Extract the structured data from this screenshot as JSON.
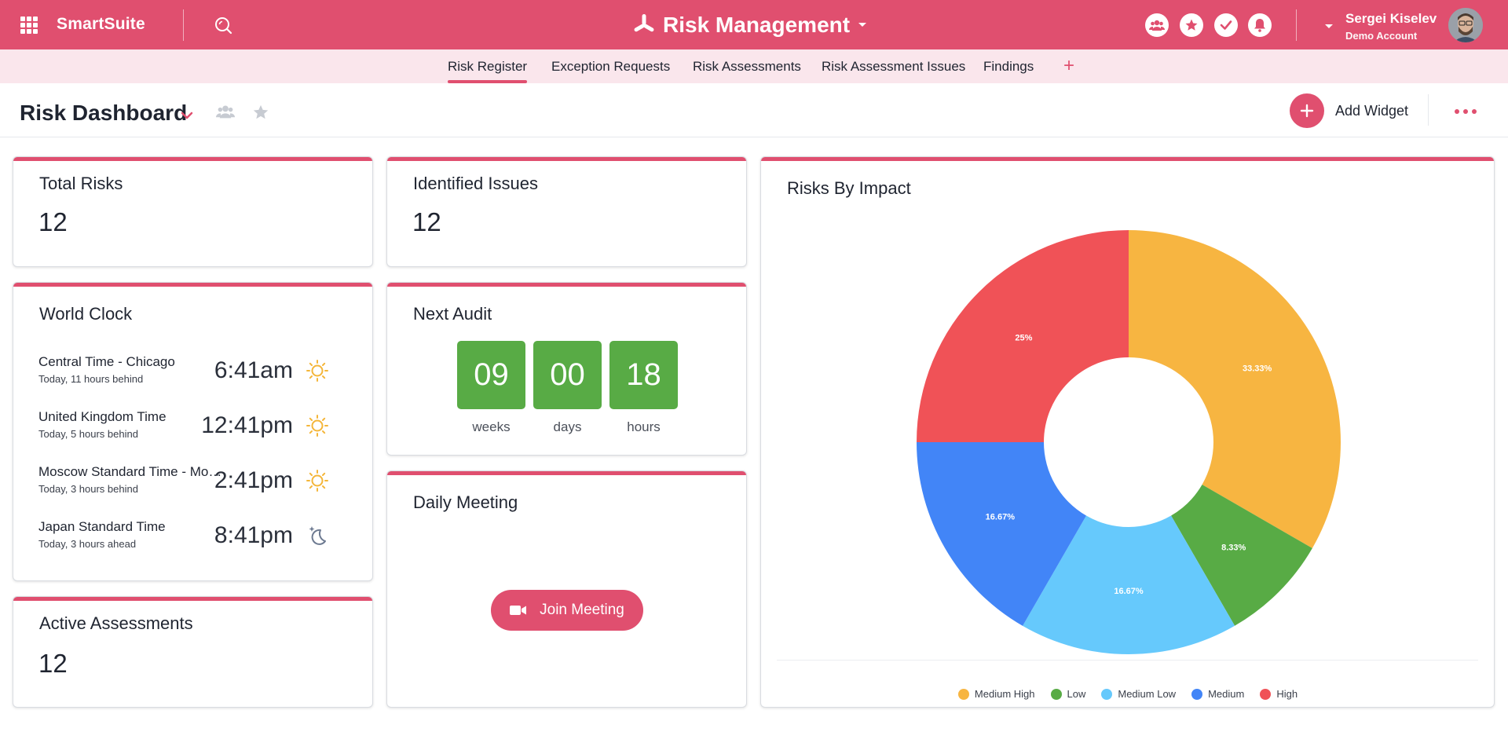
{
  "topbar": {
    "brand": "SmartSuite",
    "app_title": "Risk Management",
    "user_name": "Sergei Kiselev",
    "user_subtitle": "Demo Account"
  },
  "tabs": [
    {
      "label": "Risk Register",
      "active": true
    },
    {
      "label": "Exception Requests",
      "active": false
    },
    {
      "label": "Risk Assessments",
      "active": false
    },
    {
      "label": "Risk Assessment Issues",
      "active": false
    },
    {
      "label": "Findings",
      "active": false
    }
  ],
  "tab_add": "+",
  "header": {
    "title": "Risk Dashboard",
    "add_widget_label": "Add Widget"
  },
  "widgets": {
    "total_risks": {
      "title": "Total Risks",
      "value": "12"
    },
    "identified_issues": {
      "title": "Identified Issues",
      "value": "12"
    },
    "world_clock": {
      "title": "World Clock",
      "rows": [
        {
          "name": "Central Time - Chicago",
          "sub": "Today, 11 hours behind",
          "time": "6:41am",
          "icon": "sun-icon"
        },
        {
          "name": "United Kingdom Time",
          "sub": "Today, 5 hours behind",
          "time": "12:41pm",
          "icon": "sun-icon"
        },
        {
          "name": "Moscow Standard Time - Moscow",
          "sub": "Today, 3 hours behind",
          "time": "2:41pm",
          "icon": "sun-icon"
        },
        {
          "name": "Japan Standard Time",
          "sub": "Today, 3 hours ahead",
          "time": "8:41pm",
          "icon": "moon-icon"
        }
      ]
    },
    "next_audit": {
      "title": "Next Audit",
      "weeks": "09",
      "days": "00",
      "hours": "18",
      "weeks_label": "weeks",
      "days_label": "days",
      "hours_label": "hours"
    },
    "daily_meeting": {
      "title": "Daily Meeting",
      "button_label": "Join Meeting"
    },
    "active_assessments": {
      "title": "Active Assessments",
      "value": "12"
    },
    "risks_by_impact": {
      "title": "Risks By Impact"
    }
  },
  "colors": {
    "accent": "#e04f6f",
    "tab_bg": "#fae6ec",
    "countdown_green": "#58ab45"
  },
  "chart_data": {
    "type": "pie",
    "donut": true,
    "title": "Risks By Impact",
    "categories": [
      "Medium High",
      "Low",
      "Medium Low",
      "Medium",
      "High"
    ],
    "values": [
      33.33,
      8.33,
      16.67,
      16.67,
      25
    ],
    "labels": [
      "33.33%",
      "8.33%",
      "16.67%",
      "16.67%",
      "25%"
    ],
    "colors": [
      "#f7b541",
      "#58ab45",
      "#66c9fc",
      "#4285f7",
      "#f05257"
    ],
    "legend_position": "bottom"
  }
}
